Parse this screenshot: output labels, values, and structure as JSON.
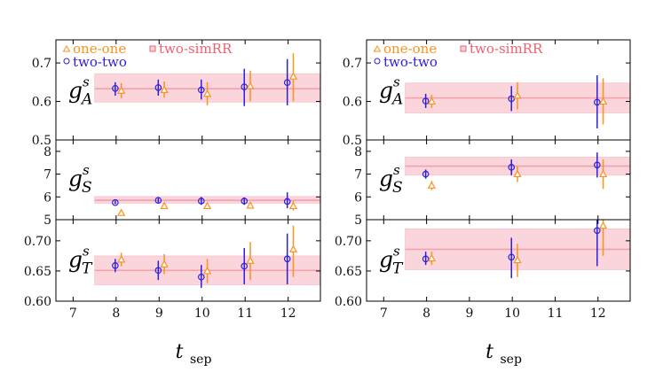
{
  "chart_data": {
    "type": "scatter",
    "x_label": "t_sep",
    "x_label_main": "t",
    "x_label_sub": "sep",
    "xlim": [
      6.6,
      12.75
    ],
    "x_ticks": [
      "7",
      "8",
      "9",
      "10",
      "11",
      "12"
    ],
    "colors": {
      "one_one": "#f7931e",
      "two_two": "#2a1ee6",
      "fit_band": "#fbd5dc",
      "fit_line": "#f2a0aa",
      "legend_simRR": "#f0606c"
    },
    "panels": [
      {
        "legend": {
          "one_one": "one-one",
          "two_simRR": "two-simRR",
          "two_two": "two-two"
        },
        "rows": [
          {
            "label_main": "g",
            "label_sup": "s",
            "label_sub": "A",
            "ylim": [
              0.5,
              0.76
            ],
            "y_ticks": [
              "0.5",
              "0.6",
              "0.7"
            ],
            "y_tick_values": [
              0.5,
              0.6,
              0.7
            ],
            "band": {
              "x_range": [
                7.5,
                12.75
              ],
              "central": 0.633,
              "low": 0.598,
              "high": 0.672
            },
            "two_two": [
              {
                "x": 8,
                "y": 0.634,
                "lo": 0.615,
                "hi": 0.65
              },
              {
                "x": 9,
                "y": 0.636,
                "lo": 0.615,
                "hi": 0.657
              },
              {
                "x": 10,
                "y": 0.63,
                "lo": 0.605,
                "hi": 0.657
              },
              {
                "x": 11,
                "y": 0.638,
                "lo": 0.588,
                "hi": 0.685
              },
              {
                "x": 12,
                "y": 0.649,
                "lo": 0.59,
                "hi": 0.71
              }
            ],
            "one_one": [
              {
                "x": 8,
                "y": 0.628,
                "lo": 0.608,
                "hi": 0.648
              },
              {
                "x": 9,
                "y": 0.63,
                "lo": 0.61,
                "hi": 0.652
              },
              {
                "x": 10,
                "y": 0.62,
                "lo": 0.59,
                "hi": 0.65
              },
              {
                "x": 11,
                "y": 0.64,
                "lo": 0.6,
                "hi": 0.68
              },
              {
                "x": 12,
                "y": 0.665,
                "lo": 0.6,
                "hi": 0.725
              }
            ]
          },
          {
            "label_main": "g",
            "label_sup": "s",
            "label_sub": "S",
            "ylim": [
              5.0,
              8.5
            ],
            "y_ticks": [
              "5",
              "6",
              "7",
              "8"
            ],
            "y_tick_values": [
              5,
              6,
              7,
              8
            ],
            "band": {
              "x_range": [
                7.5,
                12.75
              ],
              "central": 5.85,
              "low": 5.72,
              "high": 6.02
            },
            "two_two": [
              {
                "x": 8,
                "y": 5.75,
                "lo": 5.68,
                "hi": 5.83
              },
              {
                "x": 9,
                "y": 5.85,
                "lo": 5.75,
                "hi": 5.95
              },
              {
                "x": 10,
                "y": 5.82,
                "lo": 5.65,
                "hi": 6.0
              },
              {
                "x": 11,
                "y": 5.82,
                "lo": 5.65,
                "hi": 5.98
              },
              {
                "x": 12,
                "y": 5.8,
                "lo": 5.5,
                "hi": 6.2
              }
            ],
            "one_one": [
              {
                "x": 8,
                "y": 5.3,
                "lo": 5.25,
                "hi": 5.35
              },
              {
                "x": 9,
                "y": 5.6,
                "lo": 5.52,
                "hi": 5.68
              },
              {
                "x": 10,
                "y": 5.6,
                "lo": 5.48,
                "hi": 5.72
              },
              {
                "x": 11,
                "y": 5.62,
                "lo": 5.48,
                "hi": 5.75
              },
              {
                "x": 12,
                "y": 5.6,
                "lo": 5.4,
                "hi": 5.82
              }
            ]
          },
          {
            "label_main": "g",
            "label_sup": "s",
            "label_sub": "T",
            "ylim": [
              0.6,
              0.735
            ],
            "y_ticks": [
              "0.60",
              "0.65",
              "0.70"
            ],
            "y_tick_values": [
              0.6,
              0.65,
              0.7
            ],
            "band": {
              "x_range": [
                7.5,
                12.75
              ],
              "central": 0.651,
              "low": 0.627,
              "high": 0.675
            },
            "two_two": [
              {
                "x": 8,
                "y": 0.659,
                "lo": 0.648,
                "hi": 0.67
              },
              {
                "x": 9,
                "y": 0.651,
                "lo": 0.635,
                "hi": 0.667
              },
              {
                "x": 10,
                "y": 0.64,
                "lo": 0.622,
                "hi": 0.66
              },
              {
                "x": 11,
                "y": 0.658,
                "lo": 0.628,
                "hi": 0.688
              },
              {
                "x": 12,
                "y": 0.67,
                "lo": 0.628,
                "hi": 0.712
              }
            ],
            "one_one": [
              {
                "x": 8,
                "y": 0.669,
                "lo": 0.658,
                "hi": 0.68
              },
              {
                "x": 9,
                "y": 0.661,
                "lo": 0.645,
                "hi": 0.678
              },
              {
                "x": 10,
                "y": 0.65,
                "lo": 0.63,
                "hi": 0.67
              },
              {
                "x": 11,
                "y": 0.667,
                "lo": 0.635,
                "hi": 0.698
              },
              {
                "x": 12,
                "y": 0.686,
                "lo": 0.64,
                "hi": 0.725
              }
            ]
          }
        ]
      },
      {
        "legend": {
          "one_one": "one-one",
          "two_simRR": "two-simRR",
          "two_two": "two-two"
        },
        "rows": [
          {
            "label_main": "g",
            "label_sup": "s",
            "label_sub": "A",
            "ylim": [
              0.5,
              0.76
            ],
            "y_ticks": [
              "0.5",
              "0.6",
              "0.7"
            ],
            "y_tick_values": [
              0.5,
              0.6,
              0.7
            ],
            "band": {
              "x_range": [
                7.5,
                12.75
              ],
              "central": 0.609,
              "low": 0.57,
              "high": 0.648
            },
            "two_two": [
              {
                "x": 8,
                "y": 0.601,
                "lo": 0.583,
                "hi": 0.62
              },
              {
                "x": 10,
                "y": 0.607,
                "lo": 0.575,
                "hi": 0.64
              },
              {
                "x": 12,
                "y": 0.598,
                "lo": 0.53,
                "hi": 0.668
              }
            ],
            "one_one": [
              {
                "x": 8,
                "y": 0.6,
                "lo": 0.583,
                "hi": 0.617
              },
              {
                "x": 10,
                "y": 0.615,
                "lo": 0.58,
                "hi": 0.65
              },
              {
                "x": 12,
                "y": 0.6,
                "lo": 0.54,
                "hi": 0.66
              }
            ]
          },
          {
            "label_main": "g",
            "label_sup": "s",
            "label_sub": "S",
            "ylim": [
              5.0,
              8.5
            ],
            "y_ticks": [
              "5",
              "6",
              "7",
              "8"
            ],
            "y_tick_values": [
              5,
              6,
              7,
              8
            ],
            "band": {
              "x_range": [
                7.5,
                12.75
              ],
              "central": 7.35,
              "low": 6.95,
              "high": 7.75
            },
            "two_two": [
              {
                "x": 8,
                "y": 7.0,
                "lo": 6.8,
                "hi": 7.2
              },
              {
                "x": 10,
                "y": 7.3,
                "lo": 6.95,
                "hi": 7.65
              },
              {
                "x": 12,
                "y": 7.4,
                "lo": 6.85,
                "hi": 7.95
              }
            ],
            "one_one": [
              {
                "x": 8,
                "y": 6.5,
                "lo": 6.3,
                "hi": 6.7
              },
              {
                "x": 10,
                "y": 7.0,
                "lo": 6.65,
                "hi": 7.35
              },
              {
                "x": 12,
                "y": 7.0,
                "lo": 6.35,
                "hi": 7.65
              }
            ]
          },
          {
            "label_main": "g",
            "label_sup": "s",
            "label_sub": "T",
            "ylim": [
              0.6,
              0.735
            ],
            "y_ticks": [
              "0.60",
              "0.65",
              "0.70"
            ],
            "y_tick_values": [
              0.6,
              0.65,
              0.7
            ],
            "band": {
              "x_range": [
                7.5,
                12.75
              ],
              "central": 0.686,
              "low": 0.652,
              "high": 0.72
            },
            "two_two": [
              {
                "x": 8,
                "y": 0.67,
                "lo": 0.66,
                "hi": 0.682
              },
              {
                "x": 10,
                "y": 0.673,
                "lo": 0.638,
                "hi": 0.705
              },
              {
                "x": 12,
                "y": 0.717,
                "lo": 0.658,
                "hi": 0.76
              }
            ],
            "one_one": [
              {
                "x": 8,
                "y": 0.671,
                "lo": 0.66,
                "hi": 0.682
              },
              {
                "x": 10,
                "y": 0.668,
                "lo": 0.64,
                "hi": 0.695
              },
              {
                "x": 12,
                "y": 0.725,
                "lo": 0.675,
                "hi": 0.76
              }
            ]
          }
        ]
      }
    ]
  }
}
